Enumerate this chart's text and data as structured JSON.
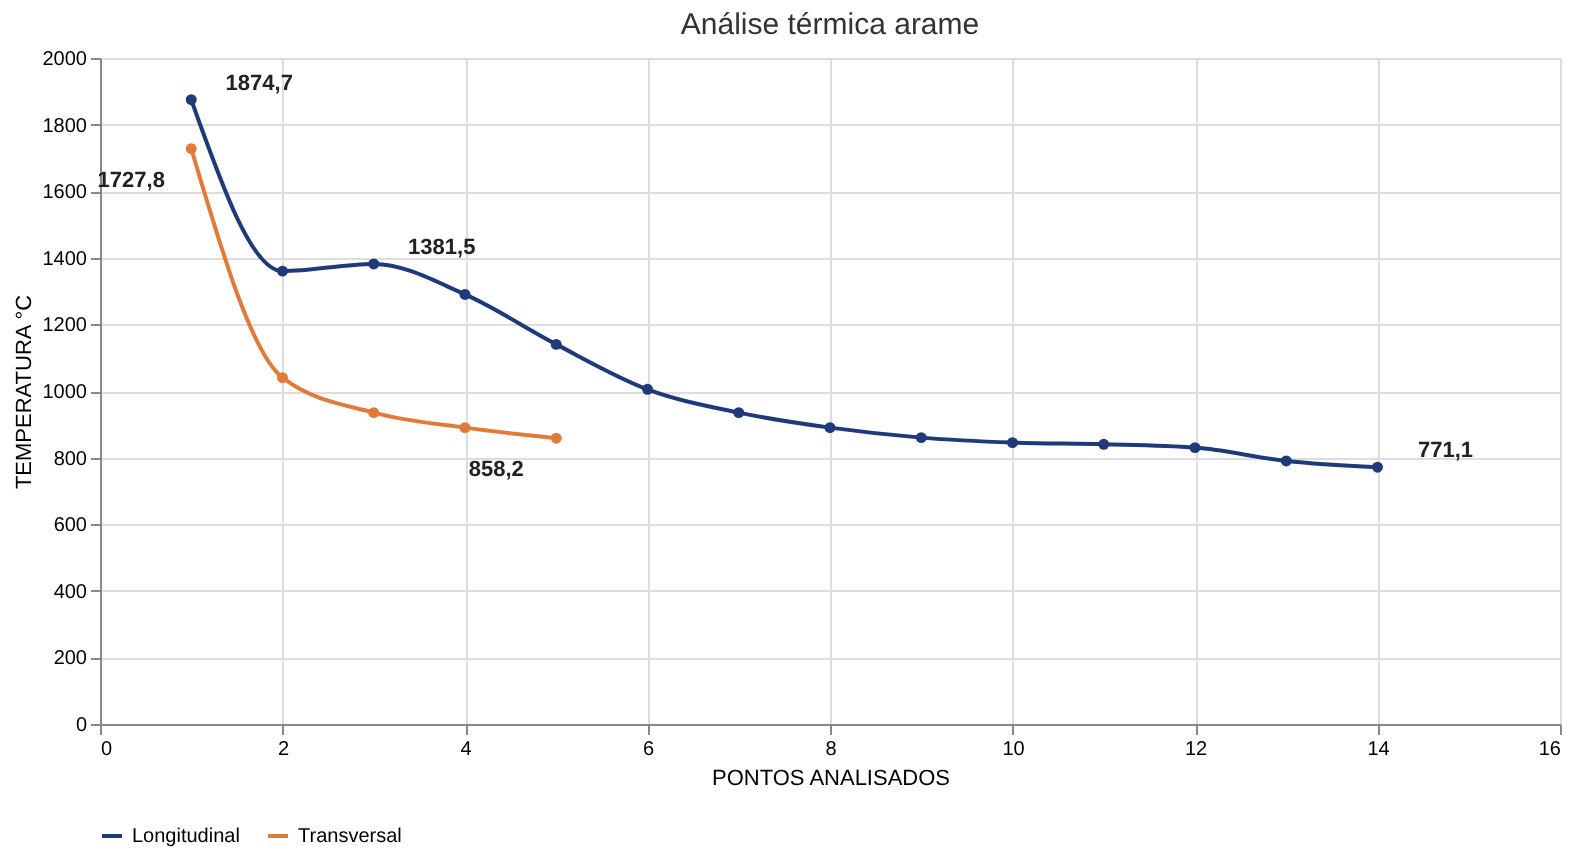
{
  "chart_data": {
    "type": "line",
    "title": "Análise térmica arame",
    "xlabel": "PONTOS ANALISADOS",
    "ylabel": "TEMPERATURA °C",
    "series": [
      {
        "name": "Longitudinal",
        "color": "#1f3a7a",
        "x": [
          1,
          2,
          3,
          4,
          5,
          6,
          7,
          8,
          9,
          10,
          11,
          12,
          13,
          14
        ],
        "values": [
          1874.7,
          1360,
          1381.5,
          1290,
          1140,
          1005,
          935,
          890,
          860,
          845,
          840,
          830,
          790,
          771.1
        ],
        "value_labels": [
          "1874,7",
          null,
          "1381,5",
          null,
          null,
          null,
          null,
          null,
          null,
          null,
          null,
          null,
          null,
          "771,1"
        ]
      },
      {
        "name": "Transversal",
        "color": "#e07b39",
        "x": [
          1,
          2,
          3,
          4,
          5
        ],
        "values": [
          1727.8,
          1040,
          935,
          890,
          858.2
        ],
        "value_labels": [
          "1727,8",
          null,
          null,
          null,
          "858,2"
        ]
      }
    ],
    "xlim": [
      0,
      16
    ],
    "xticks": [
      0,
      2,
      4,
      6,
      8,
      10,
      12,
      14,
      16
    ],
    "ylim": [
      0,
      2000
    ],
    "yticks": [
      0,
      200,
      400,
      600,
      800,
      1000,
      1200,
      1400,
      1600,
      1800,
      2000
    ],
    "grid": true,
    "legend": "bottom",
    "marker": "circle",
    "line_style": "solid"
  }
}
